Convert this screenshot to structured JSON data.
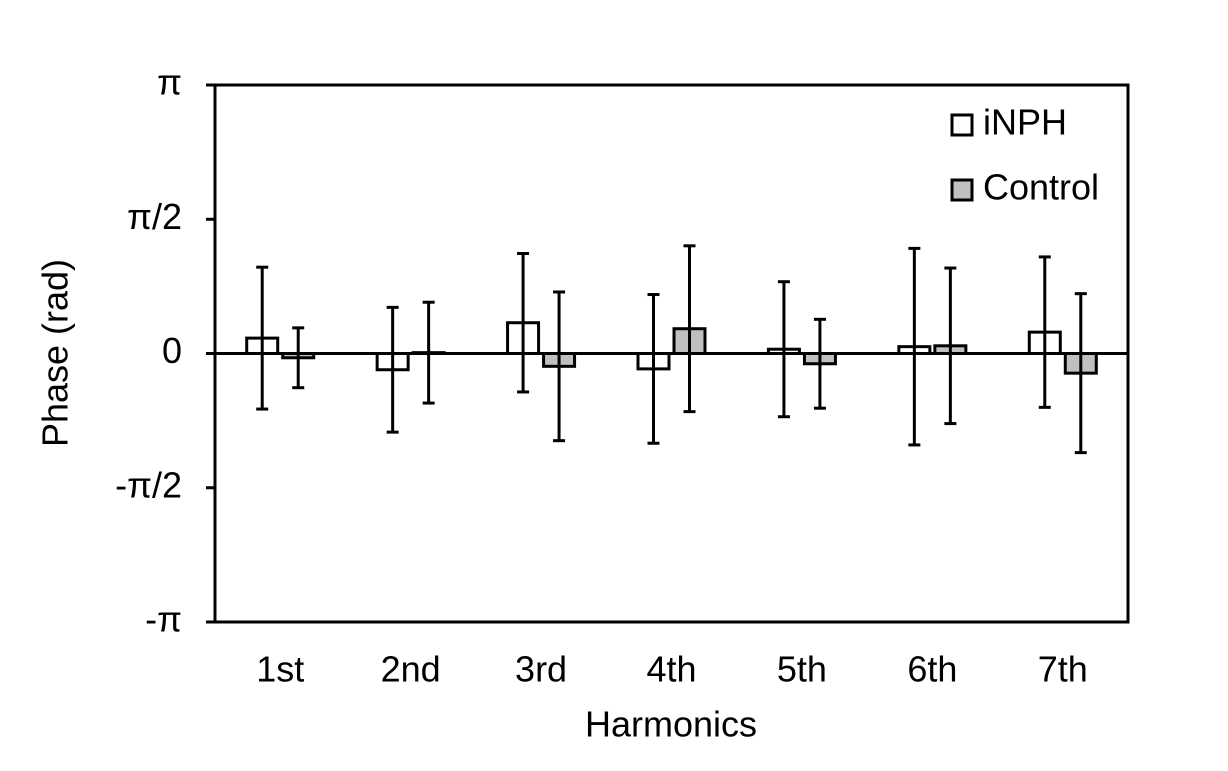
{
  "chart_data": {
    "type": "bar",
    "x_label": "Harmonics",
    "y_label": "Phase (rad)",
    "categories": [
      "1st",
      "2nd",
      "3rd",
      "4th",
      "5th",
      "6th",
      "7th"
    ],
    "series": [
      {
        "name": "iNPH",
        "color": "#ffffff",
        "values": [
          0.18,
          -0.19,
          0.36,
          -0.18,
          0.05,
          0.08,
          0.25
        ],
        "errors": [
          0.83,
          0.73,
          0.81,
          0.87,
          0.79,
          1.15,
          0.88
        ]
      },
      {
        "name": "Control",
        "color": "#c0c0c0",
        "values": [
          -0.05,
          0.01,
          -0.15,
          0.29,
          -0.12,
          0.09,
          -0.23
        ],
        "errors": [
          0.35,
          0.59,
          0.87,
          0.97,
          0.52,
          0.91,
          0.93
        ]
      }
    ],
    "ylim": [
      -3.14159,
      3.14159
    ],
    "yticks": [
      {
        "value": -3.14159,
        "label": "-π"
      },
      {
        "value": -1.5708,
        "label": "-π/2"
      },
      {
        "value": 0,
        "label": "0"
      },
      {
        "value": 1.5708,
        "label": "π/2"
      },
      {
        "value": 3.14159,
        "label": "π"
      }
    ],
    "grid": false,
    "legend": "upper right"
  }
}
